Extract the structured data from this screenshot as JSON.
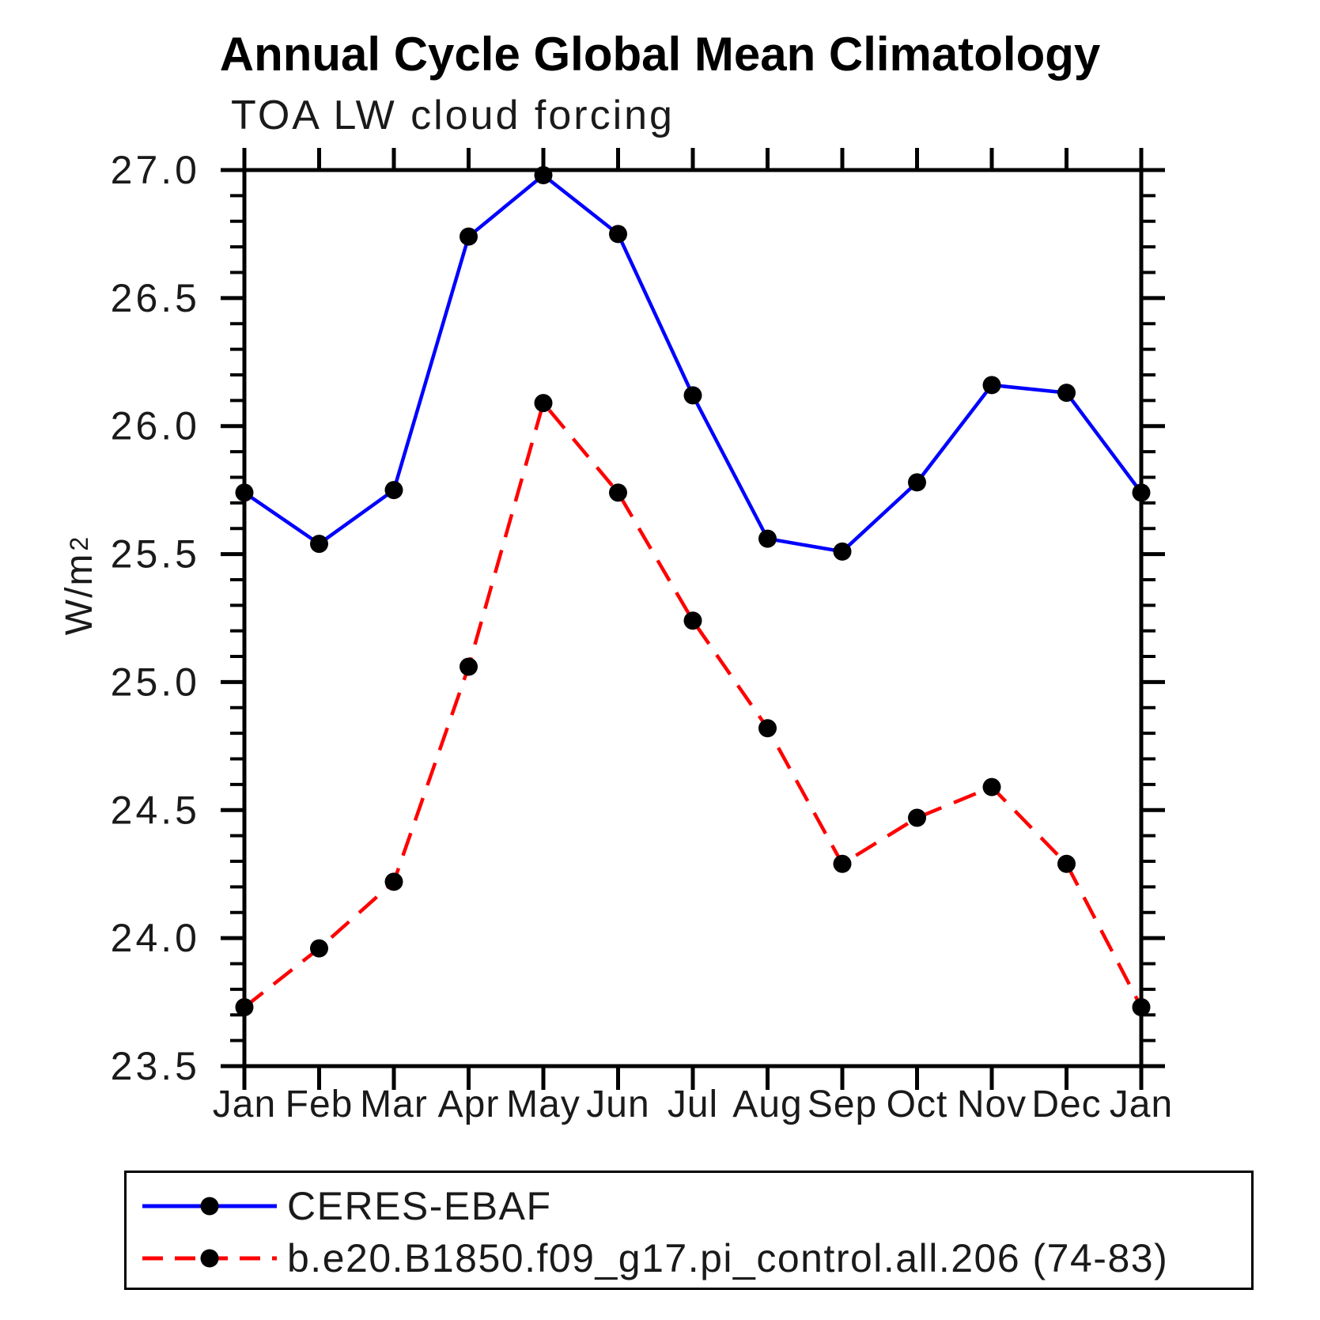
{
  "title": "Annual Cycle Global Mean Climatology",
  "subtitle": "TOA LW cloud forcing",
  "y_axis": {
    "main": "W/m",
    "exp": "2"
  },
  "chart_data": {
    "type": "line",
    "title": "Annual Cycle Global Mean Climatology",
    "subtitle": "TOA LW cloud forcing",
    "ylabel": "W/m²",
    "xlabel": "",
    "ylim": [
      23.5,
      27.0
    ],
    "ytick_step": 0.5,
    "yminor_step": 0.1,
    "ytick_labels": [
      "27.0",
      "26.5",
      "26.0",
      "25.5",
      "25.0",
      "24.5",
      "24.0",
      "23.5"
    ],
    "categories": [
      "Jan",
      "Feb",
      "Mar",
      "Apr",
      "May",
      "Jun",
      "Jul",
      "Aug",
      "Sep",
      "Oct",
      "Nov",
      "Dec",
      "Jan"
    ],
    "grid": false,
    "legend_position": "bottom",
    "frame_color": "#000000",
    "marker_color": "#000000",
    "series": [
      {
        "name": "CERES-EBAF",
        "color": "#0000ff",
        "line_style": "solid",
        "marker": "circle",
        "values": [
          25.74,
          25.54,
          25.75,
          26.74,
          26.98,
          26.75,
          26.12,
          25.56,
          25.51,
          25.78,
          26.16,
          26.13,
          25.74
        ]
      },
      {
        "name": "b.e20.B1850.f09_g17.pi_control.all.206 (74-83)",
        "color": "#ff0000",
        "line_style": "dashed",
        "marker": "circle",
        "values": [
          23.73,
          23.96,
          24.22,
          25.06,
          26.09,
          25.74,
          25.24,
          24.82,
          24.29,
          24.47,
          24.59,
          24.29,
          23.73
        ]
      }
    ]
  }
}
